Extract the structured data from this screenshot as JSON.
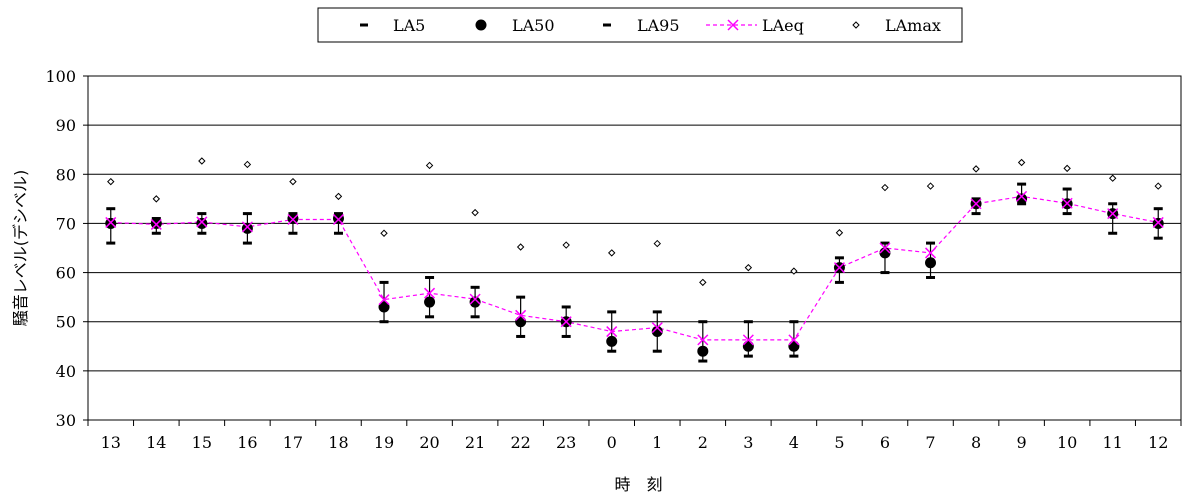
{
  "chart_data": {
    "type": "line",
    "title": "",
    "xlabel": "時　刻",
    "ylabel": "騒音レベル(デシベル)",
    "ylim": [
      30,
      100
    ],
    "yticks": [
      30,
      40,
      50,
      60,
      70,
      80,
      90,
      100
    ],
    "grid": true,
    "legend_position": "top-center",
    "categories": [
      "13",
      "14",
      "15",
      "16",
      "17",
      "18",
      "19",
      "20",
      "21",
      "22",
      "23",
      "0",
      "1",
      "2",
      "3",
      "4",
      "5",
      "6",
      "7",
      "8",
      "9",
      "10",
      "11",
      "12"
    ],
    "series": [
      {
        "name": "LA5",
        "marker": "dash",
        "color": "#000000",
        "values": [
          73,
          71,
          72,
          72,
          72,
          72,
          58,
          59,
          57,
          55,
          53,
          52,
          52,
          50,
          50,
          50,
          63,
          66,
          66,
          75,
          78,
          77,
          74,
          73
        ]
      },
      {
        "name": "LA50",
        "marker": "circle",
        "color": "#000000",
        "values": [
          70,
          70,
          70,
          69,
          71,
          71,
          53,
          54,
          54,
          50,
          50,
          46,
          48,
          44,
          45,
          45,
          61,
          64,
          62,
          74,
          75,
          74,
          72,
          70
        ]
      },
      {
        "name": "LA95",
        "marker": "dash",
        "color": "#000000",
        "values": [
          66,
          68,
          68,
          66,
          68,
          68,
          50,
          51,
          51,
          47,
          47,
          44,
          44,
          42,
          43,
          43,
          58,
          60,
          59,
          72,
          74,
          72,
          68,
          67
        ]
      },
      {
        "name": "LAeq",
        "marker": "x",
        "color": "#ff00ff",
        "line": "dashed",
        "values": [
          70.2,
          69.8,
          70.3,
          69.3,
          70.8,
          70.8,
          54.5,
          55.8,
          54.6,
          51.3,
          50.0,
          48.0,
          48.8,
          46.3,
          46.3,
          46.3,
          61.0,
          65.0,
          64.0,
          74.0,
          75.5,
          74.1,
          72.0,
          70.2
        ]
      },
      {
        "name": "LAmax",
        "marker": "diamond",
        "color": "#000000",
        "values": [
          78.5,
          75,
          82.7,
          82,
          78.5,
          75.5,
          68,
          81.8,
          72.2,
          65.2,
          65.6,
          64,
          65.9,
          58,
          61,
          60.3,
          68.1,
          77.3,
          77.6,
          81.1,
          82.4,
          81.2,
          79.2,
          77.6
        ]
      }
    ]
  }
}
